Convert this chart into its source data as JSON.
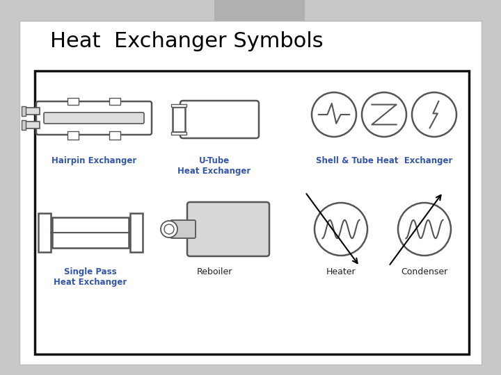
{
  "title": "Heat  Exchanger Symbols",
  "title_fontsize": 22,
  "title_color": "#000000",
  "bg_color": "#c8c8c8",
  "slide_bg": "#ffffff",
  "border_color": "#111111",
  "label_color_blue": "#3355aa",
  "label_color_dark": "#222222",
  "symbol_color": "#444444",
  "labels": {
    "hairpin": "Hairpin Exchanger",
    "utube": "U-Tube\nHeat Exchanger",
    "shell_tube": "Shell & Tube Heat  Exchanger",
    "single_pass": "Single Pass\nHeat Exchanger",
    "reboiler": "Reboiler",
    "heater": "Heater",
    "condenser": "Condenser"
  }
}
